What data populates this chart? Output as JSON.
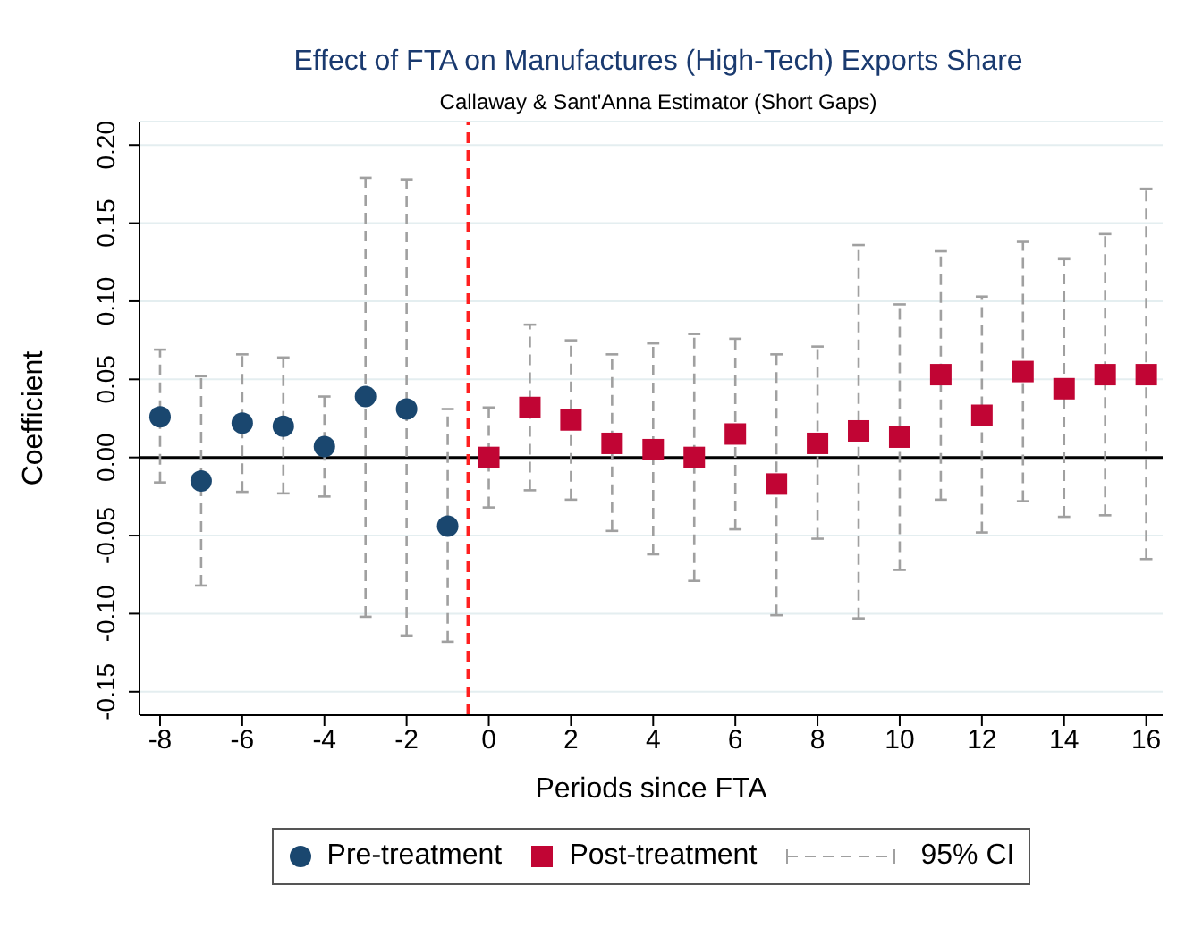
{
  "chart_data": {
    "type": "scatter",
    "title": "Effect of FTA on Manufactures (High-Tech) Exports Share",
    "subtitle": "Callaway & Sant'Anna Estimator (Short Gaps)",
    "xlabel": "Periods since FTA",
    "ylabel": "Coefficient",
    "xlim": [
      -8.5,
      16.4
    ],
    "xticks": [
      -8,
      -6,
      -4,
      -2,
      0,
      2,
      4,
      6,
      8,
      10,
      12,
      14,
      16
    ],
    "ylim": [
      -0.165,
      0.215
    ],
    "yticks": [
      {
        "value": -0.15,
        "label": "-0.15"
      },
      {
        "value": -0.1,
        "label": "-0.10"
      },
      {
        "value": -0.05,
        "label": "-0.05"
      },
      {
        "value": 0,
        "label": "0.00"
      },
      {
        "value": 0.05,
        "label": "0.05"
      },
      {
        "value": 0.1,
        "label": "0.10"
      },
      {
        "value": 0.15,
        "label": "0.15"
      },
      {
        "value": 0.2,
        "label": "0.20"
      }
    ],
    "grid": "y",
    "legend": "bottom",
    "annotations": [
      "95% CI"
    ],
    "ref_lines": [
      {
        "axis": "y",
        "value": 0,
        "color": "#000000",
        "line_style": "solid"
      },
      {
        "axis": "x",
        "value": -0.5,
        "color": "#ff2020",
        "line_style": "dashed"
      }
    ],
    "series": [
      {
        "name": "Pre-treatment",
        "color": "#1a476f",
        "marker": "circle",
        "x": [
          -8,
          -7,
          -6,
          -5,
          -4,
          -3,
          -2,
          -1
        ],
        "values": [
          0.026,
          -0.015,
          0.022,
          0.02,
          0.007,
          0.039,
          0.031,
          -0.044
        ],
        "errors": [
          [
            -0.016,
            0.069
          ],
          [
            -0.082,
            0.052
          ],
          [
            -0.022,
            0.066
          ],
          [
            -0.023,
            0.064
          ],
          [
            -0.025,
            0.039
          ],
          [
            -0.102,
            0.179
          ],
          [
            -0.114,
            0.178
          ],
          [
            -0.118,
            0.031
          ]
        ]
      },
      {
        "name": "Post-treatment",
        "color": "#c10534",
        "marker": "square",
        "x": [
          0,
          1,
          2,
          3,
          4,
          5,
          6,
          7,
          8,
          9,
          10,
          11,
          12,
          13,
          14,
          15,
          16
        ],
        "values": [
          0,
          0.032,
          0.024,
          0.009,
          0.005,
          0,
          0.015,
          -0.017,
          0.009,
          0.017,
          0.013,
          0.053,
          0.027,
          0.055,
          0.044,
          0.053,
          0.053
        ],
        "errors": [
          [
            -0.032,
            0.032
          ],
          [
            -0.021,
            0.085
          ],
          [
            -0.027,
            0.075
          ],
          [
            -0.047,
            0.066
          ],
          [
            -0.062,
            0.073
          ],
          [
            -0.079,
            0.079
          ],
          [
            -0.046,
            0.076
          ],
          [
            -0.101,
            0.066
          ],
          [
            -0.052,
            0.071
          ],
          [
            -0.103,
            0.136
          ],
          [
            -0.072,
            0.098
          ],
          [
            -0.027,
            0.132
          ],
          [
            -0.048,
            0.103
          ],
          [
            -0.028,
            0.138
          ],
          [
            -0.038,
            0.127
          ],
          [
            -0.037,
            0.143
          ],
          [
            -0.065,
            0.172
          ]
        ]
      }
    ]
  }
}
